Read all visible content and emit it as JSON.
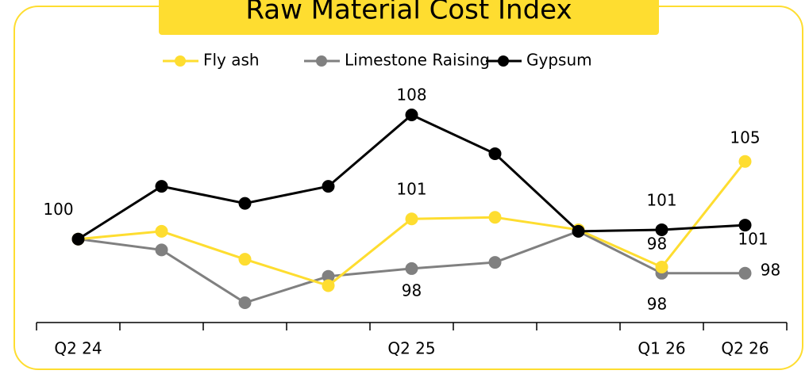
{
  "chart_data": {
    "type": "line",
    "title": "Raw Material Cost Index",
    "categories": [
      "Q2 24",
      null,
      null,
      null,
      "Q2 25",
      null,
      null,
      "Q1 26",
      "Q2 26"
    ],
    "series": [
      {
        "name": "Fly ash",
        "color": "#fedd30",
        "values": [
          100,
          100.5,
          98.7,
          97.0,
          101.3,
          101.4,
          100.6,
          98.2,
          105
        ],
        "value_labels": [
          null,
          null,
          null,
          null,
          "101",
          null,
          null,
          "98",
          "105"
        ]
      },
      {
        "name": "Limestone Raising",
        "color": "#808080",
        "values": [
          100,
          99.3,
          95.9,
          97.6,
          98.1,
          98.5,
          100.5,
          97.8,
          97.8
        ],
        "value_labels": [
          null,
          null,
          null,
          null,
          "98",
          null,
          null,
          "98",
          "98"
        ]
      },
      {
        "name": "Gypsum",
        "color": "#000000",
        "values": [
          100,
          103.4,
          102.3,
          103.4,
          108,
          105.5,
          100.5,
          100.6,
          100.9
        ],
        "value_labels": [
          "100",
          null,
          null,
          null,
          "108",
          null,
          null,
          "101",
          "101"
        ]
      }
    ]
  }
}
